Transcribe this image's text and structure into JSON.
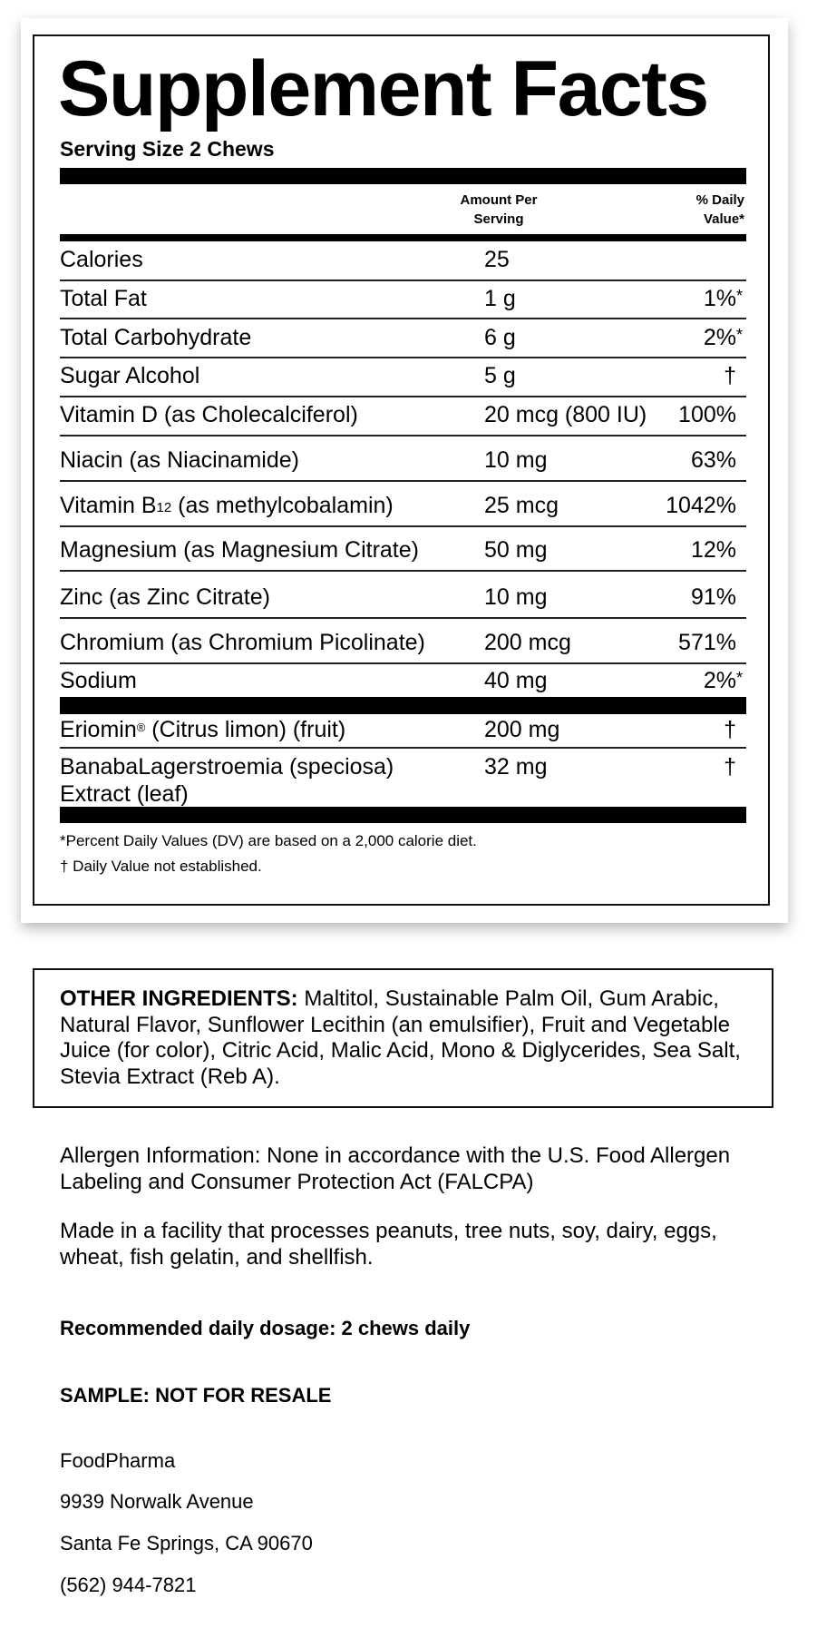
{
  "title": "Supplement Facts",
  "serving_size": "Serving Size 2 Chews",
  "header": {
    "amount_line1": "Amount Per",
    "amount_line2": "Serving",
    "dv_line1": "% Daily",
    "dv_line2": "Value*"
  },
  "rows": [
    {
      "label": "Calories",
      "amount": "25",
      "dv": "",
      "ast": ""
    },
    {
      "label": "Total Fat",
      "amount": "1 g",
      "dv": "1%",
      "ast": "*"
    },
    {
      "label": "Total Carbohydrate",
      "amount": "6 g",
      "dv": "2%",
      "ast": "*"
    },
    {
      "label": "Sugar Alcohol",
      "amount": "5 g",
      "dv": "†",
      "ast": ""
    },
    {
      "label": "Vitamin D (as Cholecalciferol)",
      "amount": "20 mcg (800 IU)",
      "dv": "100%",
      "ast": ""
    },
    {
      "label": "Niacin (as Niacinamide)",
      "amount": "10 mg",
      "dv": "63%",
      "ast": ""
    },
    {
      "label": "Vitamin B",
      "sub": "12",
      "label_after": " (as methylcobalamin)",
      "amount": "25 mcg",
      "dv": "1042%",
      "ast": ""
    },
    {
      "label": "Magnesium (as Magnesium Citrate)",
      "amount": "50 mg",
      "dv": "12%",
      "ast": ""
    },
    {
      "label": "Zinc (as Zinc Citrate)",
      "amount": "10 mg",
      "dv": "91%",
      "ast": ""
    },
    {
      "label": "Chromium (as Chromium Picolinate)",
      "amount": "200 mcg",
      "dv": "571%",
      "ast": ""
    },
    {
      "label": "Sodium",
      "amount": "40 mg",
      "dv": "2%",
      "ast": "*"
    }
  ],
  "other_rows": [
    {
      "label": "Eriomin",
      "sup": "®",
      "label_after": " (Citrus limon) (fruit)",
      "amount": "200 mg",
      "dv": "†",
      "ast": ""
    },
    {
      "label": "BanabaLagerstroemia (speciosa)",
      "label_line2": "Extract (leaf)",
      "amount": "32 mg",
      "dv": "†",
      "ast": ""
    }
  ],
  "footnotes": [
    "*Percent Daily Values (DV) are based on a 2,000 calorie diet.",
    "† Daily Value not established."
  ],
  "other_ingredients": {
    "heading": "OTHER INGREDIENTS:",
    "text": " Maltitol, Sustainable Palm Oil, Gum Arabic, Natural Flavor, Sunflower Lecithin (an emulsifier), Fruit and Vegetable Juice (for color), Citric Acid, Malic Acid, Mono & Diglycerides, Sea Salt, Stevia Extract (Reb A)."
  },
  "allergen": "Allergen Information: None in accordance with the U.S. Food Allergen Labeling and Consumer Protection Act (FALCPA)",
  "facility": "Made in a facility that processes peanuts, tree nuts, soy, dairy, eggs, wheat, fish gelatin, and shellfish.",
  "dosage": "Recommended daily dosage: 2 chews daily",
  "sample": "SAMPLE: NOT FOR RESALE",
  "address": {
    "company": "FoodPharma",
    "street": "9939 Norwalk Avenue",
    "city": "Santa Fe Springs, CA 90670",
    "phone": "(562) 944-7821"
  }
}
